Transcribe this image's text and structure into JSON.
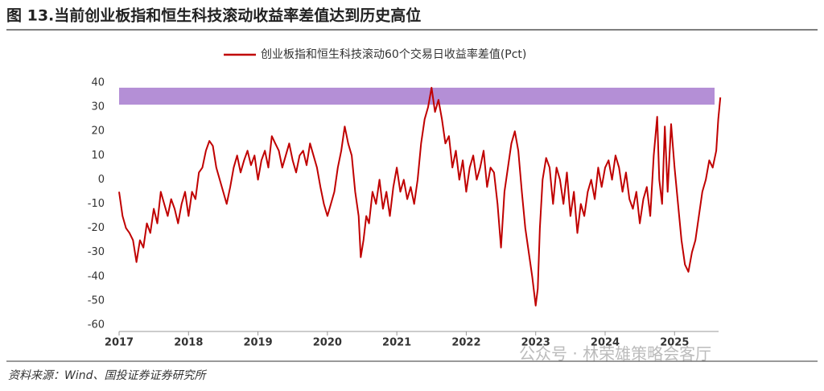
{
  "chart_data": {
    "type": "line",
    "title": "图 13.当前创业板指和恒生科技滚动收益率差值达到历史高位",
    "source": "资料来源：Wind、国投证券证券研究所",
    "watermark": "公众号 · 林荣雄策略会客厅",
    "xlim": [
      2017,
      2025.75
    ],
    "xticks": [
      2017,
      2018,
      2019,
      2020,
      2021,
      2022,
      2023,
      2024,
      2025
    ],
    "ylim": [
      -60,
      40
    ],
    "yticks": [
      40,
      30,
      20,
      10,
      0,
      -10,
      -20,
      -30,
      -40,
      -50,
      -60
    ],
    "grid": false,
    "highlight_band": {
      "ylim": [
        31,
        38
      ],
      "color": "#b48fd6"
    },
    "x": [
      2017.0,
      2017.05,
      2017.1,
      2017.15,
      2017.2,
      2017.25,
      2017.3,
      2017.35,
      2017.4,
      2017.45,
      2017.5,
      2017.55,
      2017.6,
      2017.65,
      2017.7,
      2017.75,
      2017.8,
      2017.85,
      2017.9,
      2017.95,
      2018.0,
      2018.05,
      2018.1,
      2018.15,
      2018.2,
      2018.25,
      2018.3,
      2018.35,
      2018.4,
      2018.45,
      2018.5,
      2018.55,
      2018.6,
      2018.65,
      2018.7,
      2018.75,
      2018.8,
      2018.85,
      2018.9,
      2018.95,
      2019.0,
      2019.05,
      2019.1,
      2019.15,
      2019.2,
      2019.25,
      2019.3,
      2019.35,
      2019.4,
      2019.45,
      2019.5,
      2019.55,
      2019.6,
      2019.65,
      2019.7,
      2019.75,
      2019.8,
      2019.85,
      2019.9,
      2019.95,
      2020.0,
      2020.05,
      2020.1,
      2020.15,
      2020.2,
      2020.25,
      2020.3,
      2020.35,
      2020.4,
      2020.45,
      2020.48,
      2020.52,
      2020.56,
      2020.6,
      2020.65,
      2020.7,
      2020.75,
      2020.8,
      2020.85,
      2020.9,
      2020.95,
      2021.0,
      2021.05,
      2021.1,
      2021.15,
      2021.2,
      2021.25,
      2021.3,
      2021.35,
      2021.4,
      2021.45,
      2021.5,
      2021.55,
      2021.6,
      2021.65,
      2021.7,
      2021.75,
      2021.8,
      2021.85,
      2021.9,
      2021.95,
      2022.0,
      2022.05,
      2022.1,
      2022.15,
      2022.2,
      2022.25,
      2022.3,
      2022.35,
      2022.4,
      2022.45,
      2022.5,
      2022.55,
      2022.6,
      2022.65,
      2022.7,
      2022.75,
      2022.8,
      2022.85,
      2022.9,
      2022.95,
      2023.0,
      2023.03,
      2023.06,
      2023.1,
      2023.15,
      2023.2,
      2023.25,
      2023.3,
      2023.35,
      2023.4,
      2023.45,
      2023.5,
      2023.55,
      2023.6,
      2023.65,
      2023.7,
      2023.75,
      2023.8,
      2023.85,
      2023.9,
      2023.95,
      2024.0,
      2024.05,
      2024.1,
      2024.15,
      2024.2,
      2024.25,
      2024.3,
      2024.35,
      2024.4,
      2024.45,
      2024.5,
      2024.55,
      2024.6,
      2024.65,
      2024.7,
      2024.75,
      2024.78,
      2024.82,
      2024.86,
      2024.9,
      2024.95,
      2025.0,
      2025.05,
      2025.1,
      2025.15,
      2025.2,
      2025.25,
      2025.3,
      2025.35,
      2025.4,
      2025.45,
      2025.5,
      2025.55,
      2025.6,
      2025.63,
      2025.66
    ],
    "series": [
      {
        "name": "创业板指和恒生科技滚动60个交易日收益率差值(Pct)",
        "color": "#c00000",
        "values": [
          -5,
          -15,
          -20,
          -22,
          -25,
          -34,
          -25,
          -28,
          -18,
          -22,
          -12,
          -18,
          -5,
          -10,
          -15,
          -8,
          -12,
          -18,
          -10,
          -5,
          -15,
          -5,
          -8,
          3,
          5,
          12,
          16,
          14,
          5,
          0,
          -5,
          -10,
          -3,
          5,
          10,
          3,
          8,
          12,
          6,
          10,
          0,
          8,
          12,
          5,
          18,
          15,
          12,
          5,
          10,
          15,
          8,
          3,
          10,
          12,
          6,
          15,
          10,
          5,
          -3,
          -10,
          -15,
          -10,
          -5,
          5,
          12,
          22,
          15,
          10,
          -5,
          -15,
          -32,
          -25,
          -15,
          -18,
          -5,
          -10,
          0,
          -12,
          -5,
          -15,
          -3,
          5,
          -5,
          0,
          -8,
          -3,
          -10,
          0,
          15,
          25,
          30,
          38,
          28,
          33,
          25,
          15,
          18,
          5,
          12,
          0,
          8,
          -5,
          5,
          10,
          0,
          5,
          12,
          -3,
          5,
          3,
          -10,
          -28,
          -5,
          5,
          15,
          20,
          12,
          -5,
          -20,
          -30,
          -40,
          -52,
          -45,
          -20,
          0,
          9,
          5,
          -10,
          5,
          0,
          -10,
          3,
          -15,
          -5,
          -22,
          -10,
          -15,
          -5,
          0,
          -8,
          5,
          -3,
          5,
          8,
          0,
          10,
          5,
          -5,
          3,
          -8,
          -12,
          -5,
          -18,
          -8,
          -3,
          -15,
          10,
          26,
          0,
          -10,
          22,
          -5,
          23,
          5,
          -10,
          -25,
          -35,
          -38,
          -30,
          -25,
          -15,
          -5,
          0,
          8,
          5,
          12,
          25,
          34
        ]
      }
    ]
  }
}
